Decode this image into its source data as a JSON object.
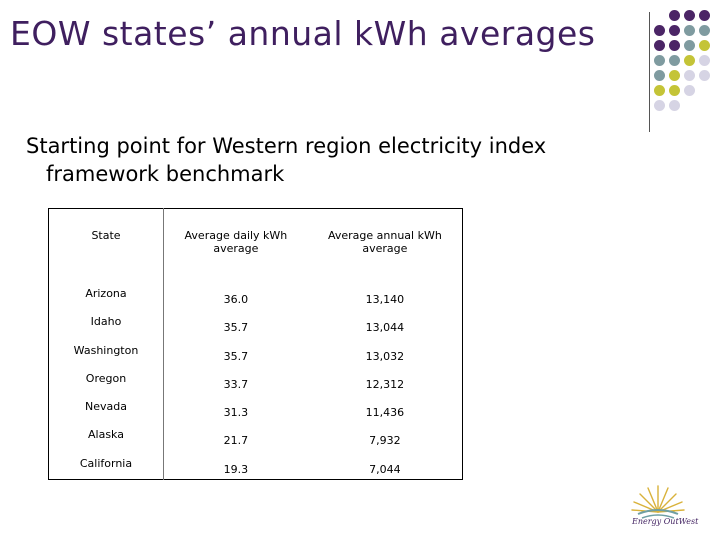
{
  "slide": {
    "title": "EOW states’ annual kWh averages",
    "subtitle_line1": "Starting point for Western region electricity index",
    "subtitle_line2": "framework benchmark",
    "logo_text": "Energy OutWest"
  },
  "colors": {
    "title": "#3f1f5f",
    "dot_purple": "#4b2566",
    "dot_slate": "#7f9ba0",
    "dot_olive": "#c4c437",
    "dot_lavender": "#d6d4e4"
  },
  "table": {
    "headers": [
      "State",
      "Average daily kWh average",
      "Average annual kWh average"
    ],
    "rows": [
      {
        "state": "Arizona",
        "daily": "36.0",
        "annual": "13,140"
      },
      {
        "state": "Idaho",
        "daily": "35.7",
        "annual": "13,044"
      },
      {
        "state": "Washington",
        "daily": "35.7",
        "annual": "13,032"
      },
      {
        "state": "Oregon",
        "daily": "33.7",
        "annual": "12,312"
      },
      {
        "state": "Nevada",
        "daily": "31.3",
        "annual": "11,436"
      },
      {
        "state": "Alaska",
        "daily": "21.7",
        "annual": "7,932"
      },
      {
        "state": "California",
        "daily": "19.3",
        "annual": "7,044"
      }
    ]
  }
}
